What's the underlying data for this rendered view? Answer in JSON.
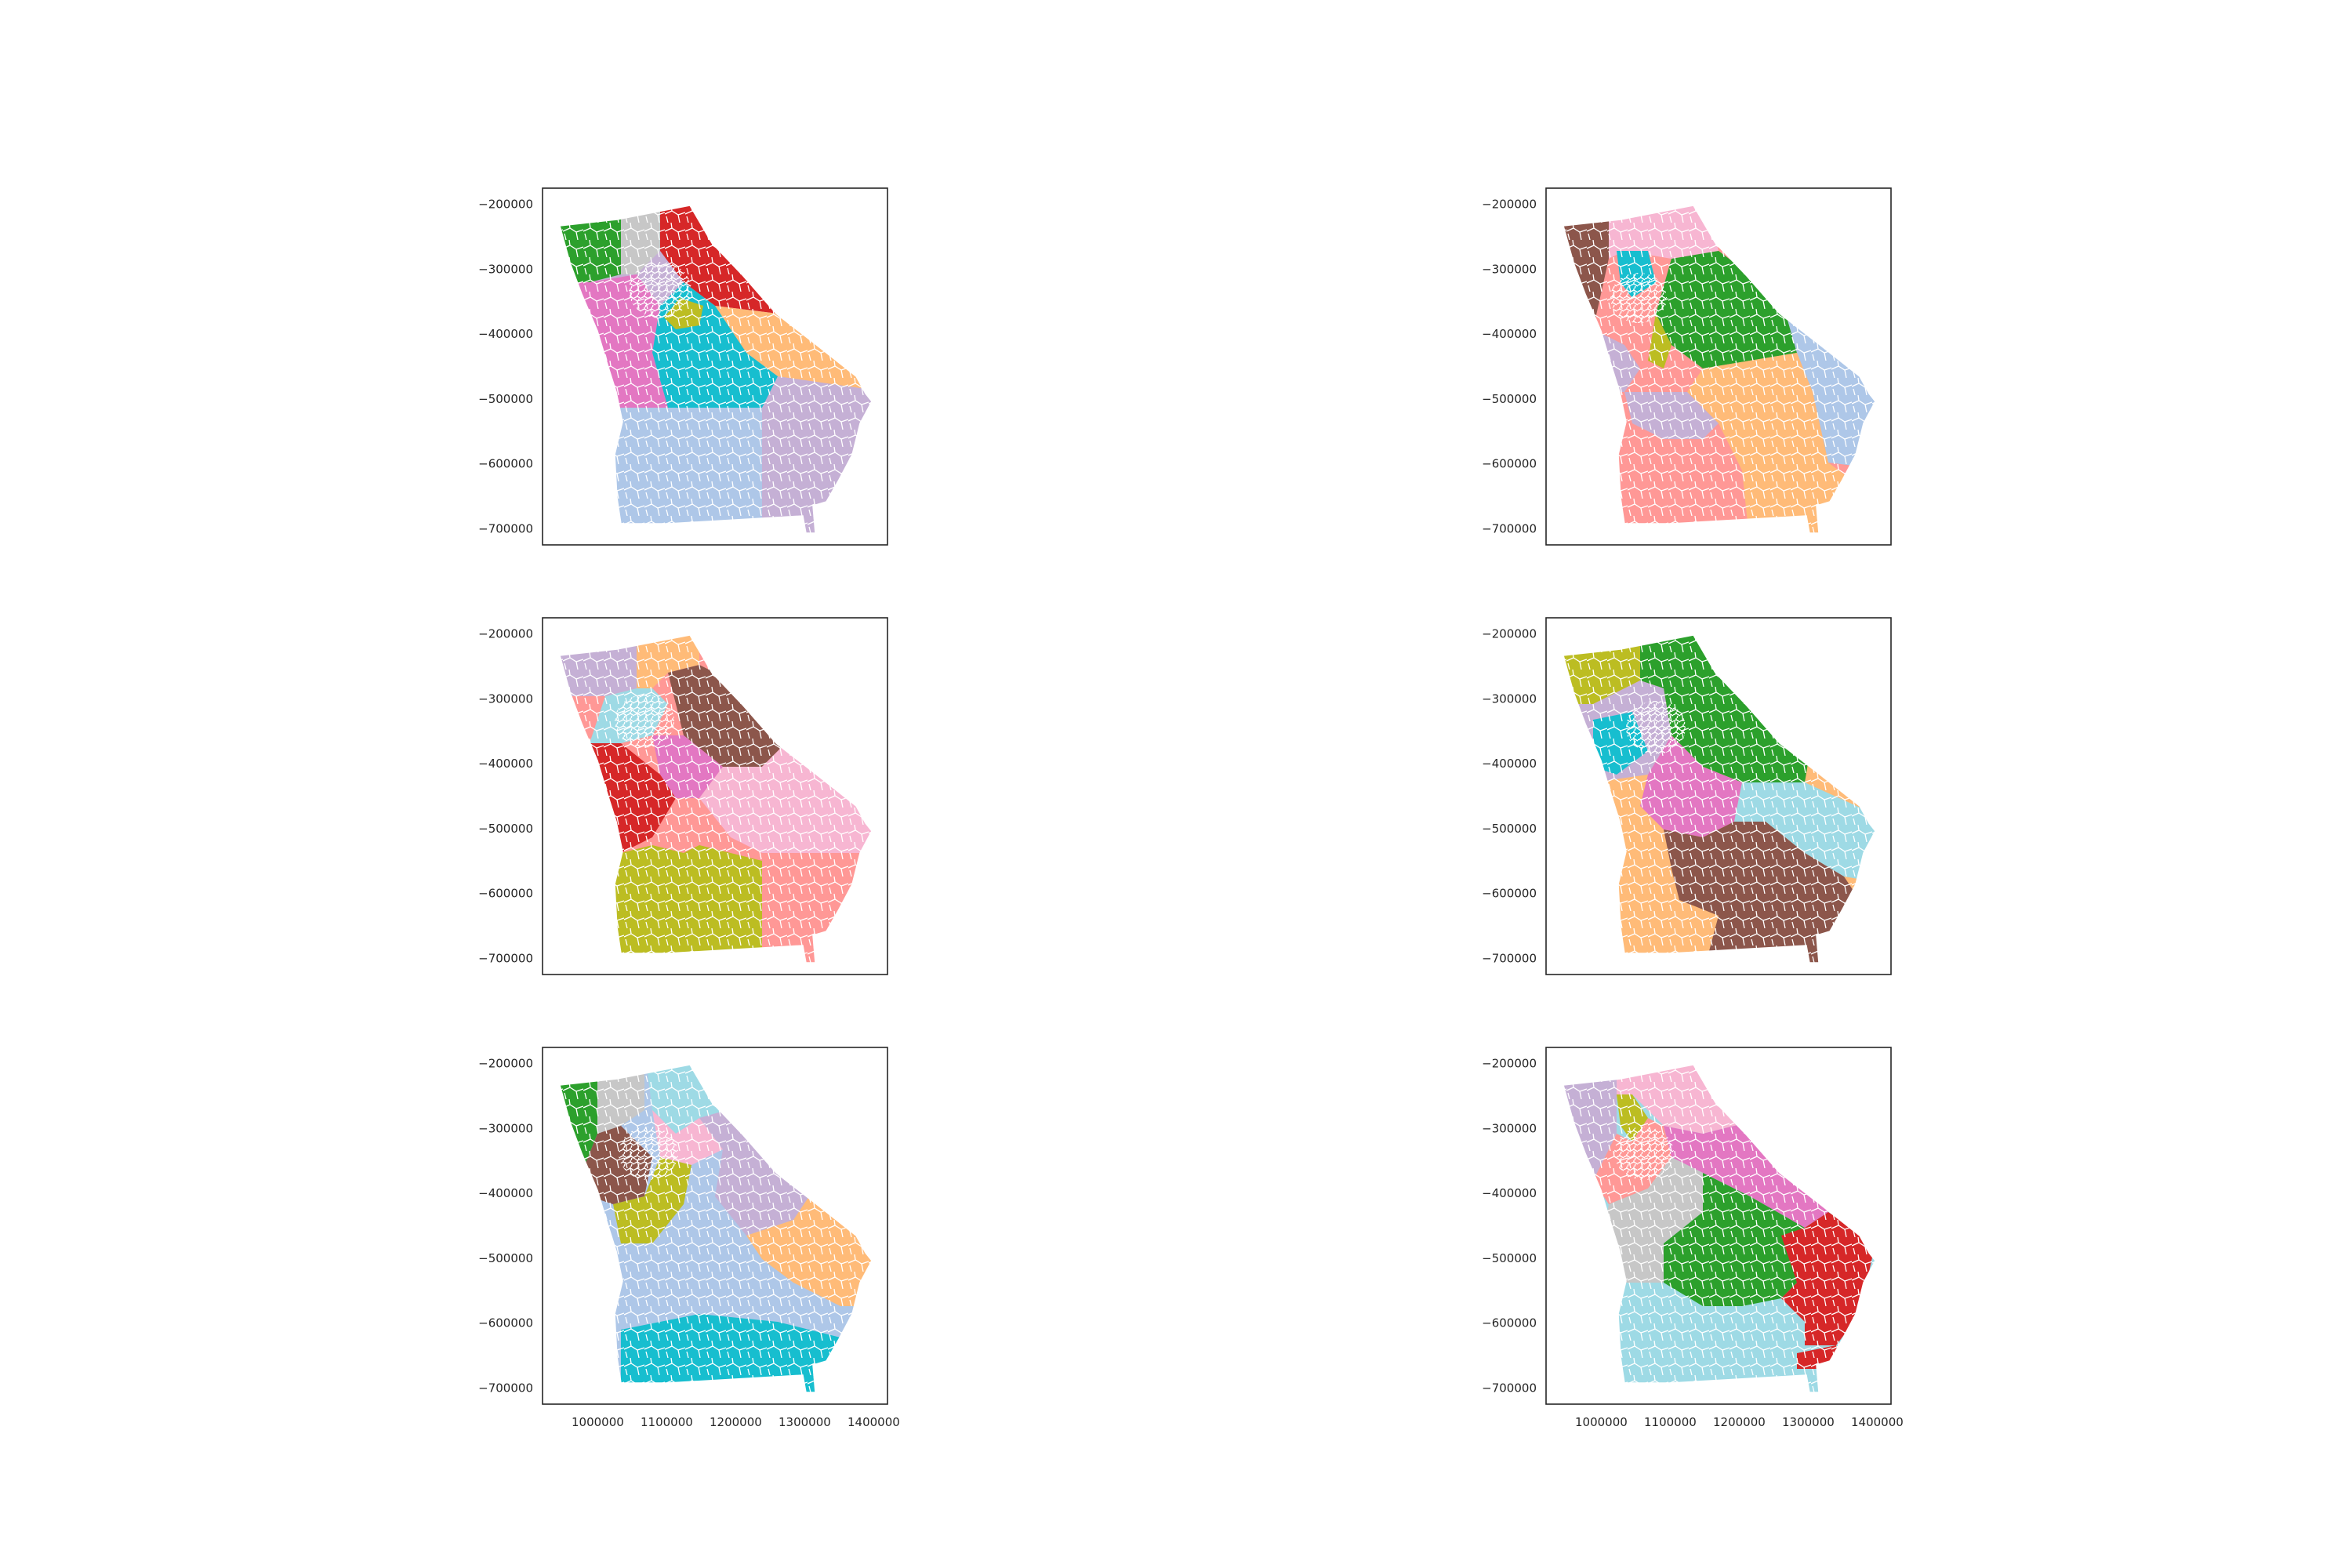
{
  "figure": {
    "panels": [
      {
        "id": "plan-1",
        "row": 1,
        "col": 1
      },
      {
        "id": "plan-2",
        "row": 1,
        "col": 2
      },
      {
        "id": "plan-3",
        "row": 2,
        "col": 1
      },
      {
        "id": "plan-4",
        "row": 2,
        "col": 2
      },
      {
        "id": "plan-5",
        "row": 3,
        "col": 1
      },
      {
        "id": "plan-6",
        "row": 3,
        "col": 2
      }
    ],
    "y_ticks": [
      "−200000",
      "−300000",
      "−400000",
      "−500000",
      "−600000",
      "−700000"
    ],
    "x_ticks": [
      "1000000",
      "1100000",
      "1200000",
      "1300000",
      "1400000"
    ],
    "x_range": [
      920000,
      1420000
    ],
    "y_range": [
      -725000,
      -175000
    ],
    "boundary_color": "#ffffff",
    "palette": {
      "green": "#2ca02c",
      "red": "#d62728",
      "gray": "#c7c7c7",
      "olive": "#bcbd22",
      "orange_light": "#ffbb78",
      "pink": "#e377c2",
      "cyan": "#17becf",
      "blue_light": "#aec7e8",
      "purple_light": "#c5b0d5",
      "brown": "#8c564b",
      "pink_light": "#f7b6d2",
      "salmon": "#ff9896",
      "cyan_light": "#9edae5"
    }
  }
}
